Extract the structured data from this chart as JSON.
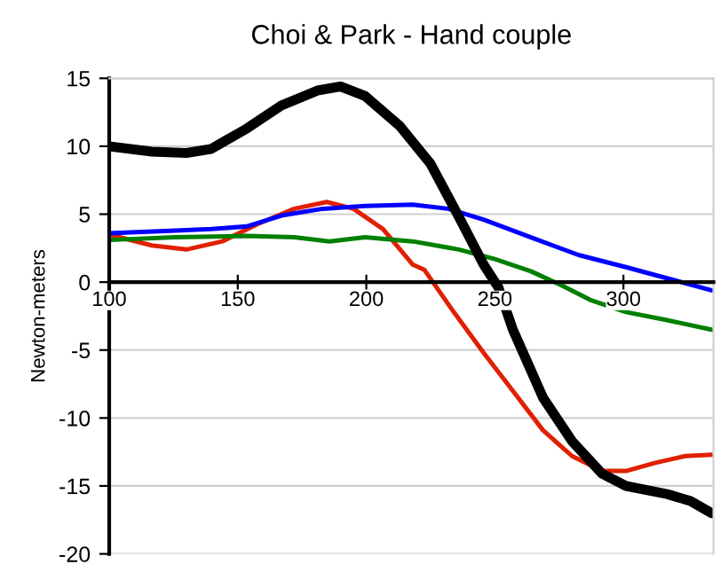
{
  "chart_data": {
    "type": "line",
    "title": "Choi & Park - Hand couple",
    "ylabel": "Newton-meters",
    "xlim": [
      100,
      335
    ],
    "xticks": [
      100,
      150,
      200,
      250,
      300
    ],
    "ylim": [
      -20,
      15
    ],
    "yticks": [
      -20,
      -15,
      -10,
      -5,
      0,
      5,
      10,
      15
    ],
    "grid": "y",
    "series": [
      {
        "color": "#000000",
        "x": [
          100,
          116.6,
          130,
          139.6,
          153.5,
          167,
          181,
          190,
          199.5,
          213,
          225,
          236,
          245.6,
          251.4,
          257,
          268.7,
          280,
          291.7,
          301,
          317,
          326,
          334.3
        ],
        "values": [
          10.0,
          9.6,
          9.5,
          9.8,
          11.3,
          13.0,
          14.1,
          14.4,
          13.7,
          11.5,
          8.7,
          4.8,
          1.3,
          -0.4,
          -3.5,
          -8.5,
          -11.7,
          -14.1,
          -15.0,
          -15.6,
          -16.1,
          -17.0
        ]
      },
      {
        "color": "#0000ff",
        "x": [
          100,
          125.8,
          139.6,
          153.5,
          167,
          183,
          199.5,
          218,
          231.8,
          245.6,
          264,
          282.5,
          301,
          314.7,
          334.3
        ],
        "values": [
          3.6,
          3.8,
          3.9,
          4.1,
          4.9,
          5.4,
          5.6,
          5.7,
          5.4,
          4.6,
          3.3,
          2.0,
          1.1,
          0.4,
          -0.6
        ]
      },
      {
        "color": "#008000",
        "x": [
          100,
          125.8,
          153.5,
          172,
          185.7,
          199.5,
          218,
          236,
          250,
          264,
          275.6,
          287,
          301,
          317,
          334.3
        ],
        "values": [
          3.1,
          3.3,
          3.4,
          3.3,
          3.0,
          3.3,
          3.0,
          2.4,
          1.7,
          0.8,
          -0.2,
          -1.3,
          -2.2,
          -2.8,
          -3.5
        ]
      },
      {
        "color": "#e02000",
        "x": [
          100,
          116.6,
          130,
          144,
          158,
          172,
          184.6,
          195,
          206.5,
          218,
          222.6,
          234,
          245.6,
          257,
          268.7,
          280,
          291.7,
          301,
          312.4,
          324,
          334.3
        ],
        "values": [
          3.5,
          2.7,
          2.4,
          3.0,
          4.3,
          5.4,
          5.9,
          5.4,
          3.9,
          1.3,
          0.9,
          -2.2,
          -5.2,
          -8.0,
          -10.9,
          -12.8,
          -13.9,
          -13.9,
          -13.3,
          -12.8,
          -12.7
        ]
      }
    ]
  }
}
